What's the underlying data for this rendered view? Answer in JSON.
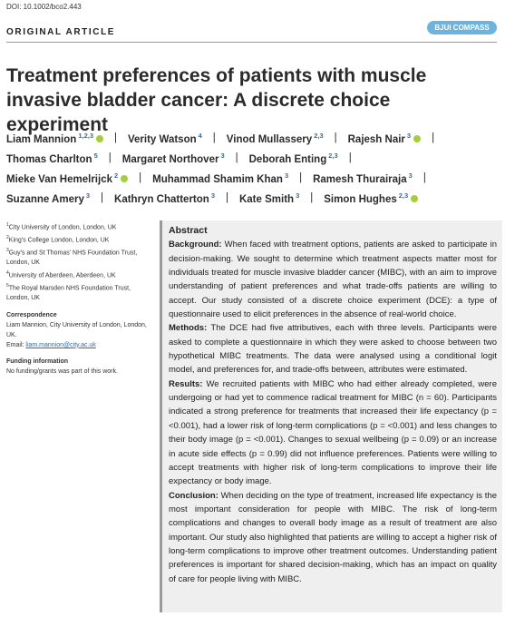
{
  "doi": "DOI: 10.1002/bco2.443",
  "article_type": "ORIGINAL ARTICLE",
  "journal": "BJUI COMPASS",
  "title": "Treatment preferences of patients with muscle invasive bladder cancer: A discrete choice experiment",
  "author_separator": "|",
  "authors": [
    [
      {
        "name": "Liam Mannion",
        "sup": "1,2,3",
        "orcid": true
      },
      {
        "name": "Verity Watson",
        "sup": "4",
        "orcid": false
      },
      {
        "name": "Vinod Mullassery",
        "sup": "2,3",
        "orcid": false
      },
      {
        "name": "Rajesh Nair",
        "sup": "3",
        "orcid": true
      }
    ],
    [
      {
        "name": "Thomas Charlton",
        "sup": "5",
        "orcid": false
      },
      {
        "name": "Margaret Northover",
        "sup": "3",
        "orcid": false
      },
      {
        "name": "Deborah Enting",
        "sup": "2,3",
        "orcid": false
      }
    ],
    [
      {
        "name": "Mieke Van Hemelrijck",
        "sup": "2",
        "orcid": true
      },
      {
        "name": "Muhammad Shamim Khan",
        "sup": "3",
        "orcid": false
      },
      {
        "name": "Ramesh Thurairaja",
        "sup": "3",
        "orcid": false
      }
    ],
    [
      {
        "name": "Suzanne Amery",
        "sup": "3",
        "orcid": false
      },
      {
        "name": "Kathryn Chatterton",
        "sup": "3",
        "orcid": false
      },
      {
        "name": "Kate Smith",
        "sup": "3",
        "orcid": false
      },
      {
        "name": "Simon Hughes",
        "sup": "2,3",
        "orcid": true
      }
    ]
  ],
  "affiliations": [
    {
      "sup": "1",
      "text": "City University of London, London, UK"
    },
    {
      "sup": "2",
      "text": "King's College London, London, UK"
    },
    {
      "sup": "3",
      "text": "Guy's and St Thomas' NHS Foundation Trust, London, UK"
    },
    {
      "sup": "4",
      "text": "University of Aberdeen, Aberdeen, UK"
    },
    {
      "sup": "5",
      "text": "The Royal Marsden NHS Foundation Trust, London, UK"
    }
  ],
  "correspondence": {
    "heading": "Correspondence",
    "text": "Liam Mannion, City University of London, London, UK.",
    "email_label": "Email:",
    "email": "liam.mannion@city.ac.uk"
  },
  "funding": {
    "heading": "Funding information",
    "text": "No funding/grants was part of this work."
  },
  "abstract": {
    "heading": "Abstract",
    "sections": [
      {
        "label": "Background:",
        "text": "When faced with treatment options, patients are asked to participate in decision-making. We sought to determine which treatment aspects matter most for individuals treated for muscle invasive bladder cancer (MIBC), with an aim to improve understanding of patient preferences and what trade-offs patients are willing to accept. Our study consisted of a discrete choice experiment (DCE): a type of questionnaire used to elicit preferences in the absence of real-world choice."
      },
      {
        "label": "Methods:",
        "text": "The DCE had five attributives, each with three levels. Participants were asked to complete a questionnaire in which they were asked to choose between two hypothetical MIBC treatments. The data were analysed using a conditional logit model, and preferences for, and trade-offs between, attributes were estimated."
      },
      {
        "label": "Results:",
        "text": "We recruited patients with MIBC who had either already completed, were undergoing or had yet to commence radical treatment for MIBC (n = 60). Participants indicated a strong preference for treatments that increased their life expectancy (p = <0.001), had a lower risk of long-term complications (p = <0.001) and less changes to their body image (p = <0.001). Changes to sexual wellbeing (p = 0.09) or an increase in acute side effects (p = 0.99) did not influence preferences. Patients were willing to accept treatments with higher risk of long-term complications to improve their life expectancy or body image."
      },
      {
        "label": "Conclusion:",
        "text": "When deciding on the type of treatment, increased life expectancy is the most important consideration for people with MIBC. The risk of long-term complications and changes to overall body image as a result of treatment are also important. Our study also highlighted that patients are willing to accept a higher risk of long-term complications to improve other treatment outcomes. Understanding patient preferences is important for shared decision-making, which has an impact on quality of care for people living with MIBC."
      }
    ]
  }
}
